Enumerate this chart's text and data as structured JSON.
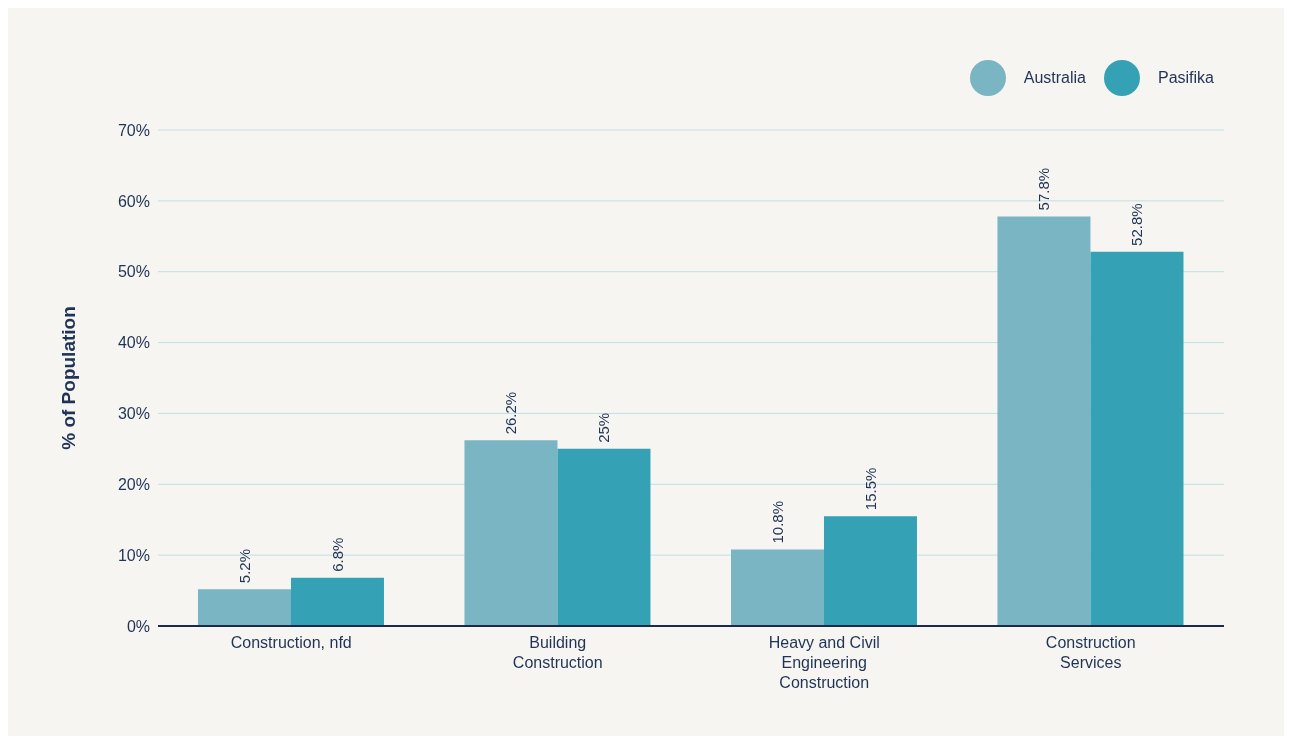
{
  "chart_data": {
    "type": "bar",
    "ylabel": "% of Population",
    "categories": [
      "Construction, nfd",
      "Building Construction",
      "Heavy and Civil Engineering Construction",
      "Construction Services"
    ],
    "series": [
      {
        "name": "Australia",
        "color": "#79b5c3",
        "values": [
          5.2,
          26.2,
          10.8,
          57.8
        ],
        "value_labels": [
          "5.2%",
          "26.2%",
          "10.8%",
          "57.8%"
        ]
      },
      {
        "name": "Pasifika",
        "color": "#34a2b4",
        "values": [
          6.8,
          25,
          15.5,
          52.8
        ],
        "value_labels": [
          "6.8%",
          "25%",
          "15.5%",
          "52.8%"
        ]
      }
    ],
    "ylim": [
      0,
      70
    ],
    "yticks": [
      {
        "value": 0,
        "label": "0%"
      },
      {
        "value": 10,
        "label": "10%"
      },
      {
        "value": 20,
        "label": "20%"
      },
      {
        "value": 30,
        "label": "30%"
      },
      {
        "value": 40,
        "label": "40%"
      },
      {
        "value": 50,
        "label": "50%"
      },
      {
        "value": 60,
        "label": "60%"
      },
      {
        "value": 70,
        "label": "70%"
      }
    ],
    "grid": "y",
    "legend": "top right"
  }
}
